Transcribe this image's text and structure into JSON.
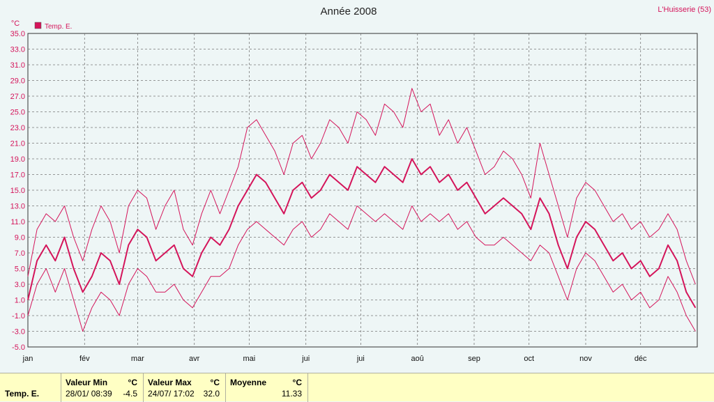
{
  "header": {
    "title": "Année 2008",
    "station": "L'Huisserie (53)"
  },
  "legend": {
    "unit": "°C",
    "label": "Temp. E.",
    "color": "#d4145a"
  },
  "stats": {
    "series_name": "Temp. E.",
    "min_label": "Valeur Min",
    "min_unit": "°C",
    "min_date": "28/01/  08:39",
    "min_value": "-4.5",
    "max_label": "Valeur Max",
    "max_unit": "°C",
    "max_date": "24/07/  17:02",
    "max_value": "32.0",
    "avg_label": "Moyenne",
    "avg_unit": "°C",
    "avg_value": "11.33"
  },
  "chart_data": {
    "type": "line",
    "title": "Année 2008",
    "ylabel": "°C",
    "ylim": [
      -5,
      35
    ],
    "yticks": [
      "35.0",
      "33.0",
      "31.0",
      "29.0",
      "27.0",
      "25.0",
      "23.0",
      "21.0",
      "19.0",
      "17.0",
      "15.0",
      "13.0",
      "11.0",
      "9.0",
      "7.0",
      "5.0",
      "3.0",
      "1.0",
      "-1.0",
      "-3.0",
      "-5.0"
    ],
    "xlim": [
      0,
      366
    ],
    "xticks": [
      {
        "label": "jan",
        "day": 0
      },
      {
        "label": "fév",
        "day": 31
      },
      {
        "label": "mar",
        "day": 60
      },
      {
        "label": "avr",
        "day": 91
      },
      {
        "label": "mai",
        "day": 121
      },
      {
        "label": "jui",
        "day": 152
      },
      {
        "label": "jui",
        "day": 182
      },
      {
        "label": "aoû",
        "day": 213
      },
      {
        "label": "sep",
        "day": 244
      },
      {
        "label": "oct",
        "day": 274
      },
      {
        "label": "nov",
        "day": 305
      },
      {
        "label": "déc",
        "day": 335
      }
    ],
    "grid": true,
    "legend_position": "top-left",
    "series": [
      {
        "name": "Temp. E.",
        "role": "mean",
        "x": [
          0,
          5,
          10,
          15,
          20,
          25,
          30,
          35,
          40,
          45,
          50,
          55,
          60,
          65,
          70,
          75,
          80,
          85,
          90,
          95,
          100,
          105,
          110,
          115,
          120,
          125,
          130,
          135,
          140,
          145,
          150,
          155,
          160,
          165,
          170,
          175,
          180,
          185,
          190,
          195,
          200,
          205,
          210,
          215,
          220,
          225,
          230,
          235,
          240,
          245,
          250,
          255,
          260,
          265,
          270,
          275,
          280,
          285,
          290,
          295,
          300,
          305,
          310,
          315,
          320,
          325,
          330,
          335,
          340,
          345,
          350,
          355,
          360,
          365
        ],
        "y": [
          1,
          6,
          8,
          6,
          9,
          5,
          2,
          4,
          7,
          6,
          3,
          8,
          10,
          9,
          6,
          7,
          8,
          5,
          4,
          7,
          9,
          8,
          10,
          13,
          15,
          17,
          16,
          14,
          12,
          15,
          16,
          14,
          15,
          17,
          16,
          15,
          18,
          17,
          16,
          18,
          17,
          16,
          19,
          17,
          18,
          16,
          17,
          15,
          16,
          14,
          12,
          13,
          14,
          13,
          12,
          10,
          14,
          12,
          8,
          5,
          9,
          11,
          10,
          8,
          6,
          7,
          5,
          6,
          4,
          5,
          8,
          6,
          2,
          0
        ]
      },
      {
        "name": "",
        "role": "max",
        "x": [
          0,
          5,
          10,
          15,
          20,
          25,
          30,
          35,
          40,
          45,
          50,
          55,
          60,
          65,
          70,
          75,
          80,
          85,
          90,
          95,
          100,
          105,
          110,
          115,
          120,
          125,
          130,
          135,
          140,
          145,
          150,
          155,
          160,
          165,
          170,
          175,
          180,
          185,
          190,
          195,
          200,
          205,
          210,
          215,
          220,
          225,
          230,
          235,
          240,
          245,
          250,
          255,
          260,
          265,
          270,
          275,
          280,
          285,
          290,
          295,
          300,
          305,
          310,
          315,
          320,
          325,
          330,
          335,
          340,
          345,
          350,
          355,
          360,
          365
        ],
        "y": [
          4,
          10,
          12,
          11,
          13,
          9,
          6,
          10,
          13,
          11,
          7,
          13,
          15,
          14,
          10,
          13,
          15,
          10,
          8,
          12,
          15,
          12,
          15,
          18,
          23,
          24,
          22,
          20,
          17,
          21,
          22,
          19,
          21,
          24,
          23,
          21,
          25,
          24,
          22,
          26,
          25,
          23,
          28,
          25,
          26,
          22,
          24,
          21,
          23,
          20,
          17,
          18,
          20,
          19,
          17,
          14,
          21,
          17,
          13,
          9,
          14,
          16,
          15,
          13,
          11,
          12,
          10,
          11,
          9,
          10,
          12,
          10,
          6,
          3
        ]
      },
      {
        "name": "",
        "role": "min",
        "x": [
          0,
          5,
          10,
          15,
          20,
          25,
          30,
          35,
          40,
          45,
          50,
          55,
          60,
          65,
          70,
          75,
          80,
          85,
          90,
          95,
          100,
          105,
          110,
          115,
          120,
          125,
          130,
          135,
          140,
          145,
          150,
          155,
          160,
          165,
          170,
          175,
          180,
          185,
          190,
          195,
          200,
          205,
          210,
          215,
          220,
          225,
          230,
          235,
          240,
          245,
          250,
          255,
          260,
          265,
          270,
          275,
          280,
          285,
          290,
          295,
          300,
          305,
          310,
          315,
          320,
          325,
          330,
          335,
          340,
          345,
          350,
          355,
          360,
          365
        ],
        "y": [
          -1,
          3,
          5,
          2,
          5,
          1,
          -3,
          0,
          2,
          1,
          -1,
          3,
          5,
          4,
          2,
          2,
          3,
          1,
          0,
          2,
          4,
          4,
          5,
          8,
          10,
          11,
          10,
          9,
          8,
          10,
          11,
          9,
          10,
          12,
          11,
          10,
          13,
          12,
          11,
          12,
          11,
          10,
          13,
          11,
          12,
          11,
          12,
          10,
          11,
          9,
          8,
          8,
          9,
          8,
          7,
          6,
          8,
          7,
          4,
          1,
          5,
          7,
          6,
          4,
          2,
          3,
          1,
          2,
          0,
          1,
          4,
          2,
          -1,
          -3
        ]
      }
    ]
  }
}
